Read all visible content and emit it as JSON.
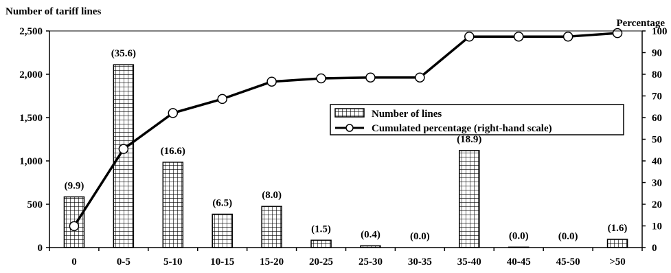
{
  "chart_data": {
    "type": "bar",
    "y_left_label": "Number of tariff lines",
    "y_right_label": "Percentage",
    "ylim_left": [
      0,
      2500
    ],
    "ylim_right": [
      0,
      100
    ],
    "left_ticks": [
      "0",
      "500",
      "1,000",
      "1,500",
      "2,000",
      "2,500"
    ],
    "left_tick_values": [
      0,
      500,
      1000,
      1500,
      2000,
      2500
    ],
    "right_ticks": [
      "0",
      "10",
      "20",
      "30",
      "40",
      "50",
      "60",
      "70",
      "80",
      "90",
      "100"
    ],
    "right_tick_values": [
      0,
      10,
      20,
      30,
      40,
      50,
      60,
      70,
      80,
      90,
      100
    ],
    "categories": [
      "0",
      "0-5",
      "5-10",
      "10-15",
      "15-20",
      "20-25",
      "25-30",
      "30-35",
      "35-40",
      "40-45",
      "45-50",
      ">50"
    ],
    "series": [
      {
        "name": "Number of lines",
        "axis": "left",
        "values": [
          585,
          2110,
          985,
          385,
          475,
          85,
          20,
          0,
          1120,
          5,
          0,
          95
        ],
        "labels": [
          "(9.9)",
          "(35.6)",
          "(16.6)",
          "(6.5)",
          "(8.0)",
          "(1.5)",
          "(0.4)",
          "(0.0)",
          "(18.9)",
          "(0.0)",
          "(0.0)",
          "(1.6)"
        ]
      },
      {
        "name": "Cumulated percentage (right-hand scale)",
        "axis": "right",
        "values": [
          9.9,
          45.5,
          62.1,
          68.6,
          76.6,
          78.1,
          78.5,
          78.5,
          97.4,
          97.4,
          97.4,
          99.0
        ]
      }
    ],
    "legend_position": "upper-right"
  }
}
